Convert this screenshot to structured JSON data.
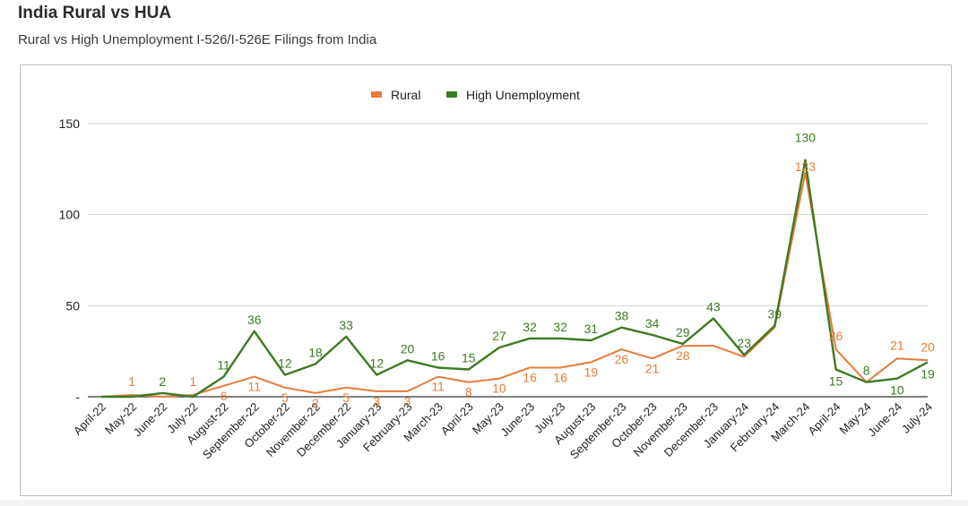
{
  "header": {
    "title": "India Rural vs HUA",
    "subtitle": "Rural vs High Unemployment I-526/I-526E Filings from India"
  },
  "chart_data": {
    "type": "line",
    "categories": [
      "April-22",
      "May-22",
      "June-22",
      "July-22",
      "August-22",
      "September-22",
      "October-22",
      "November-22",
      "December-22",
      "January-23",
      "February-23",
      "March-23",
      "April-23",
      "May-23",
      "June-23",
      "July-23",
      "August-23",
      "September-23",
      "October-23",
      "November-23",
      "December-23",
      "January-24",
      "February-24",
      "March-24",
      "April-24",
      "May-24",
      "June-24",
      "July-24"
    ],
    "series": [
      {
        "name": "Rural",
        "color": "#e67b3a",
        "values": [
          0,
          1,
          0,
          1,
          6,
          11,
          5,
          2,
          5,
          3,
          3,
          11,
          8,
          10,
          16,
          16,
          19,
          26,
          21,
          28,
          28,
          22,
          38,
          123,
          26,
          8,
          21,
          20
        ],
        "labels": [
          "",
          "1",
          "",
          "1",
          "6",
          "11",
          "5",
          "2",
          "5",
          "3",
          "3",
          "11",
          "8",
          "10",
          "16",
          "16",
          "19",
          "26",
          "21",
          "28",
          "",
          "",
          "",
          "123",
          "26",
          "",
          "21",
          "20"
        ]
      },
      {
        "name": "High Unemployment",
        "color": "#3d7a22",
        "values": [
          0,
          0,
          2,
          0,
          11,
          36,
          12,
          18,
          33,
          12,
          20,
          16,
          15,
          27,
          32,
          32,
          31,
          38,
          34,
          29,
          43,
          23,
          39,
          130,
          15,
          8,
          10,
          19
        ],
        "labels": [
          "",
          "",
          "2",
          "",
          "11",
          "36",
          "12",
          "18",
          "33",
          "12",
          "20",
          "16",
          "15",
          "27",
          "32",
          "32",
          "31",
          "38",
          "34",
          "29",
          "43",
          "23",
          "39",
          "130",
          "15",
          "8",
          "10",
          "19"
        ]
      }
    ],
    "y_ticks": [
      "150",
      "100",
      "50",
      "-"
    ],
    "y_tick_values": [
      150,
      100,
      50,
      0
    ],
    "ylim": [
      0,
      150
    ],
    "legend_position": "top",
    "grid": true
  }
}
